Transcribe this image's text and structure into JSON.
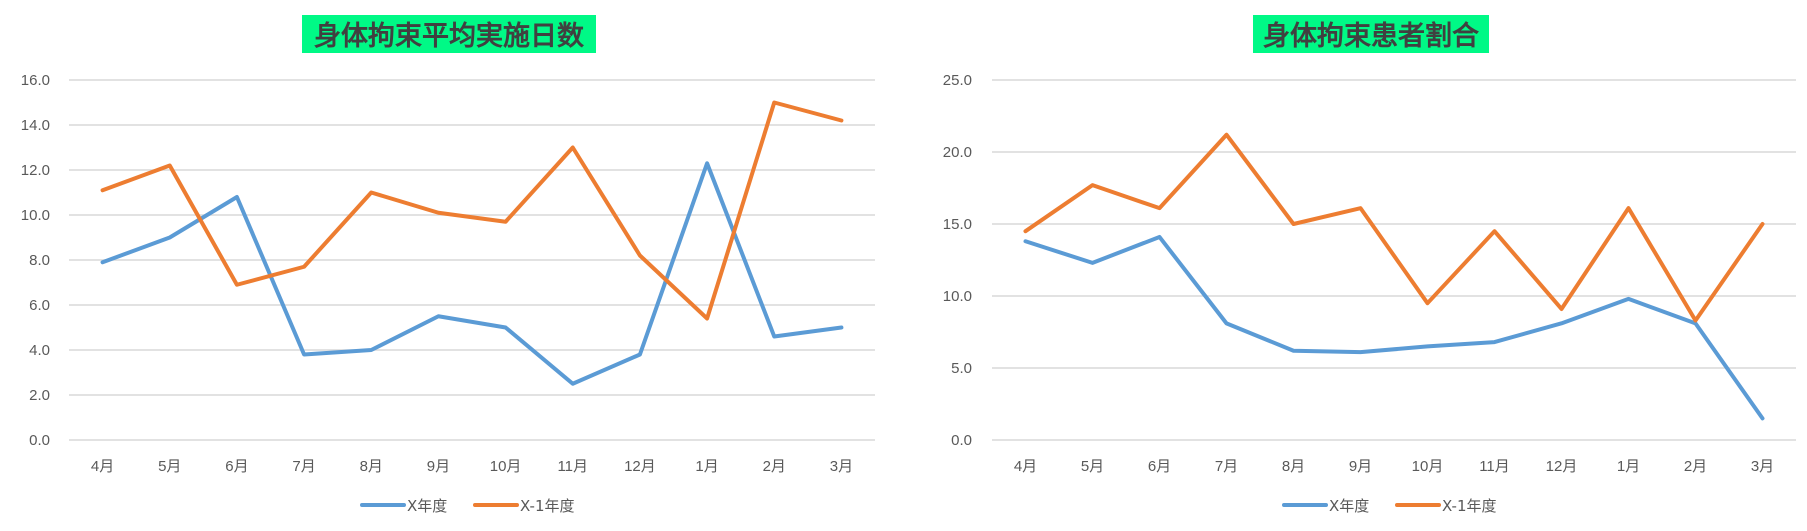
{
  "colors": {
    "x_year": "#5B9BD5",
    "x_minus_1_year": "#ED7D31",
    "title_bg": "#00F986",
    "grid": "#D9D9D9"
  },
  "chart_data": [
    {
      "type": "line",
      "title": "身体拘束平均実施日数",
      "categories": [
        "4月",
        "5月",
        "6月",
        "7月",
        "8月",
        "9月",
        "10月",
        "11月",
        "12月",
        "1月",
        "2月",
        "3月"
      ],
      "yticks": [
        "0.0",
        "2.0",
        "4.0",
        "6.0",
        "8.0",
        "10.0",
        "12.0",
        "14.0",
        "16.0"
      ],
      "ylim": [
        0,
        16
      ],
      "grid": true,
      "legend_position": "bottom",
      "series": [
        {
          "name": "X年度",
          "values": [
            7.9,
            9.0,
            10.8,
            3.8,
            4.0,
            5.5,
            5.0,
            2.5,
            3.8,
            12.3,
            4.6,
            5.0
          ]
        },
        {
          "name": "X-1年度",
          "values": [
            11.1,
            12.2,
            6.9,
            7.7,
            11.0,
            10.1,
            9.7,
            13.0,
            8.2,
            5.4,
            15.0,
            14.2
          ]
        }
      ]
    },
    {
      "type": "line",
      "title": "身体拘束患者割合",
      "categories": [
        "4月",
        "5月",
        "6月",
        "7月",
        "8月",
        "9月",
        "10月",
        "11月",
        "12月",
        "1月",
        "2月",
        "3月"
      ],
      "yticks": [
        "0.0",
        "5.0",
        "10.0",
        "15.0",
        "20.0",
        "25.0"
      ],
      "ylim": [
        0,
        25
      ],
      "grid": true,
      "legend_position": "bottom",
      "series": [
        {
          "name": "X年度",
          "values": [
            13.8,
            12.3,
            14.1,
            8.1,
            6.2,
            6.1,
            6.5,
            6.8,
            8.1,
            9.8,
            8.1,
            1.5
          ]
        },
        {
          "name": "X-1年度",
          "values": [
            14.5,
            17.7,
            16.1,
            21.2,
            15.0,
            16.1,
            9.5,
            14.5,
            9.1,
            16.1,
            8.3,
            15.0
          ]
        }
      ]
    }
  ]
}
